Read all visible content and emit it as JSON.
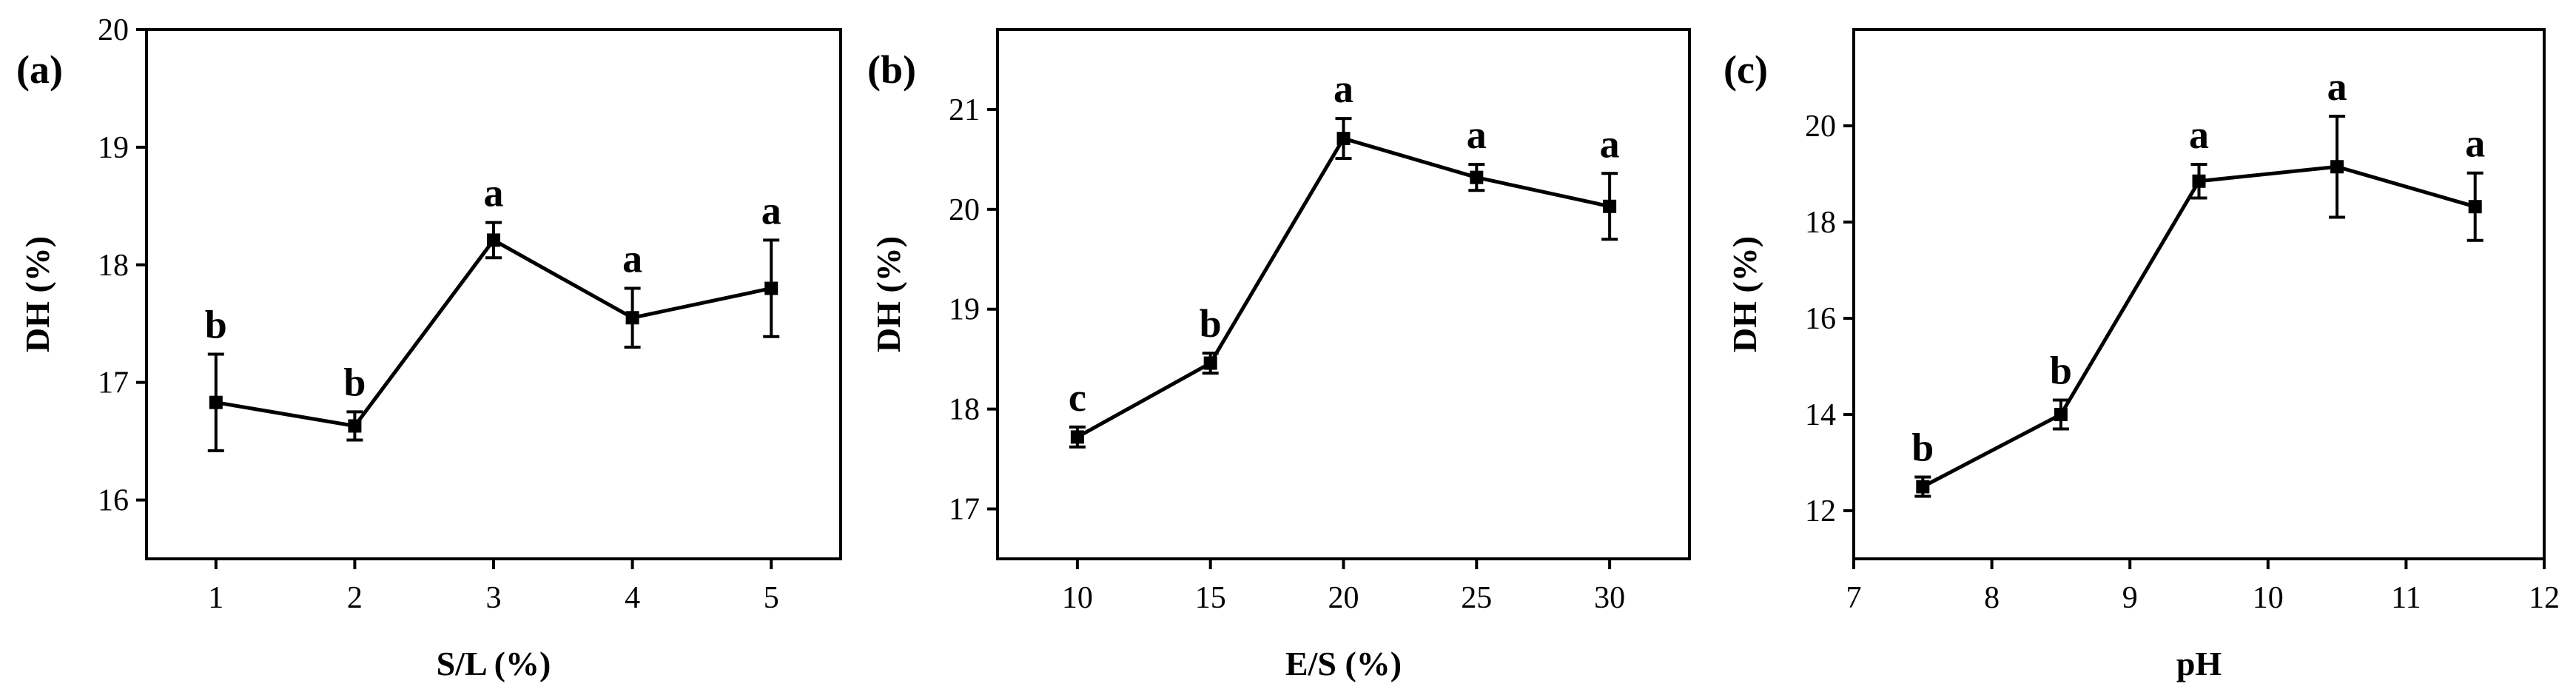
{
  "chart_data": [
    {
      "type": "line",
      "panel_label": "(a)",
      "xlabel": "S/L (%)",
      "ylabel": "DH (%)",
      "xlim": [
        0.5,
        5.5
      ],
      "ylim": [
        15.5,
        20.0
      ],
      "xticks": [
        1,
        2,
        3,
        4,
        5
      ],
      "yticks": [
        16,
        17,
        18,
        19,
        20
      ],
      "series": [
        {
          "x": [
            1,
            2,
            3,
            4,
            5
          ],
          "y": [
            16.83,
            16.63,
            18.21,
            17.55,
            17.8
          ],
          "error": [
            0.41,
            0.12,
            0.15,
            0.25,
            0.41
          ],
          "labels": [
            "b",
            "b",
            "a",
            "a",
            "a"
          ]
        }
      ],
      "grid": false
    },
    {
      "type": "line",
      "panel_label": "(b)",
      "xlabel": "E/S (%)",
      "ylabel": "DH (%)",
      "xlim": [
        7,
        33
      ],
      "ylim": [
        16.5,
        21.8
      ],
      "xticks": [
        10,
        15,
        20,
        25,
        30
      ],
      "yticks": [
        17,
        18,
        19,
        20,
        21
      ],
      "series": [
        {
          "x": [
            10,
            15,
            20,
            25,
            30
          ],
          "y": [
            17.72,
            18.46,
            20.71,
            20.32,
            20.03
          ],
          "error": [
            0.1,
            0.1,
            0.2,
            0.13,
            0.33
          ],
          "labels": [
            "c",
            "b",
            "a",
            "a",
            "a"
          ]
        }
      ],
      "grid": false
    },
    {
      "type": "line",
      "panel_label": "(c)",
      "xlabel": "pH",
      "ylabel": "DH (%)",
      "xlim": [
        7,
        12
      ],
      "ylim": [
        11,
        22
      ],
      "xticks": [
        7,
        8,
        9,
        10,
        11,
        12
      ],
      "yticks": [
        12,
        14,
        16,
        18,
        20
      ],
      "series": [
        {
          "x": [
            7.5,
            8.5,
            9.5,
            10.5,
            11.5
          ],
          "y": [
            12.5,
            14.0,
            18.85,
            19.15,
            18.32
          ],
          "error": [
            0.2,
            0.3,
            0.35,
            1.05,
            0.7
          ],
          "labels": [
            "b",
            "b",
            "a",
            "a",
            "a"
          ]
        }
      ],
      "grid": false
    }
  ]
}
